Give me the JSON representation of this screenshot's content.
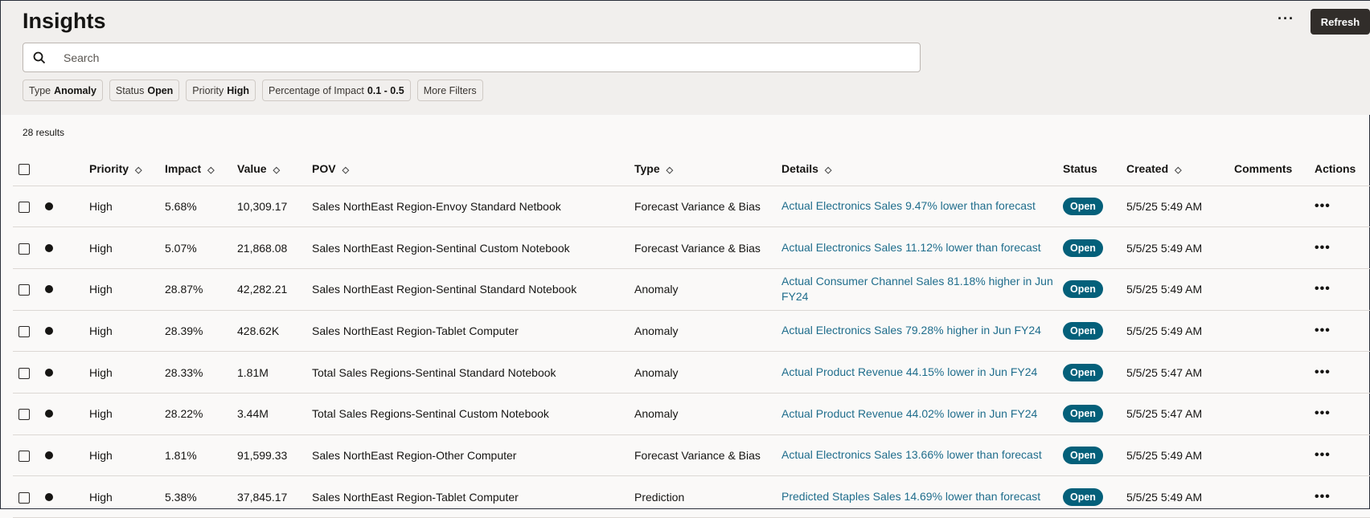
{
  "header": {
    "title": "Insights",
    "more_label": "···",
    "refresh_label": "Refresh"
  },
  "search": {
    "placeholder": "Search",
    "value": ""
  },
  "filters": [
    {
      "label": "Type",
      "value": "Anomaly"
    },
    {
      "label": "Status",
      "value": "Open"
    },
    {
      "label": "Priority",
      "value": "High"
    },
    {
      "label": "Percentage of Impact",
      "value": "0.1 - 0.5"
    },
    {
      "label": "More Filters",
      "value": ""
    }
  ],
  "results_count": "28 results",
  "columns": [
    "",
    "",
    "Priority",
    "Impact",
    "Value",
    "POV",
    "Type",
    "Details",
    "Status",
    "Created",
    "Comments",
    "Actions"
  ],
  "rows": [
    {
      "priority": "High",
      "impact": "5.68%",
      "value": "10,309.17",
      "pov": "Sales NorthEast Region-Envoy Standard Netbook",
      "type": "Forecast Variance & Bias",
      "details": "Actual Electronics Sales 9.47% lower than forecast",
      "status": "Open",
      "created": "5/5/25 5:49 AM",
      "comments": ""
    },
    {
      "priority": "High",
      "impact": "5.07%",
      "value": "21,868.08",
      "pov": "Sales NorthEast Region-Sentinal Custom Notebook",
      "type": "Forecast Variance & Bias",
      "details": "Actual Electronics Sales 11.12% lower than forecast",
      "status": "Open",
      "created": "5/5/25 5:49 AM",
      "comments": ""
    },
    {
      "priority": "High",
      "impact": "28.87%",
      "value": "42,282.21",
      "pov": "Sales NorthEast Region-Sentinal Standard Notebook",
      "type": "Anomaly",
      "details": "Actual Consumer Channel Sales 81.18% higher in Jun FY24",
      "status": "Open",
      "created": "5/5/25 5:49 AM",
      "comments": ""
    },
    {
      "priority": "High",
      "impact": "28.39%",
      "value": "428.62K",
      "pov": "Sales NorthEast Region-Tablet Computer",
      "type": "Anomaly",
      "details": "Actual Electronics Sales 79.28% higher in Jun FY24",
      "status": "Open",
      "created": "5/5/25 5:49 AM",
      "comments": ""
    },
    {
      "priority": "High",
      "impact": "28.33%",
      "value": "1.81M",
      "pov": "Total Sales Regions-Sentinal Standard Notebook",
      "type": "Anomaly",
      "details": "Actual Product Revenue 44.15% lower in Jun FY24",
      "status": "Open",
      "created": "5/5/25 5:47 AM",
      "comments": ""
    },
    {
      "priority": "High",
      "impact": "28.22%",
      "value": "3.44M",
      "pov": "Total Sales Regions-Sentinal Custom Notebook",
      "type": "Anomaly",
      "details": "Actual Product Revenue 44.02% lower in Jun FY24",
      "status": "Open",
      "created": "5/5/25 5:47 AM",
      "comments": ""
    },
    {
      "priority": "High",
      "impact": "1.81%",
      "value": "91,599.33",
      "pov": "Sales NorthEast Region-Other Computer",
      "type": "Forecast Variance & Bias",
      "details": "Actual Electronics Sales 13.66% lower than forecast",
      "status": "Open",
      "created": "5/5/25 5:49 AM",
      "comments": ""
    },
    {
      "priority": "High",
      "impact": "5.38%",
      "value": "37,845.17",
      "pov": "Sales NorthEast Region-Tablet Computer",
      "type": "Prediction",
      "details": "Predicted Staples Sales 14.69% lower than forecast",
      "status": "Open",
      "created": "5/5/25 5:49 AM",
      "comments": ""
    }
  ],
  "colors": {
    "status_badge": "#04607a",
    "link": "#1f6d8c",
    "refresh_bg": "#312d2a",
    "header_bg": "#f1efed"
  },
  "icons": {
    "search": "search-icon",
    "sort": "sort-icon",
    "row_actions": "more-horizontal-icon",
    "priority_dot": "priority-dot-icon"
  }
}
